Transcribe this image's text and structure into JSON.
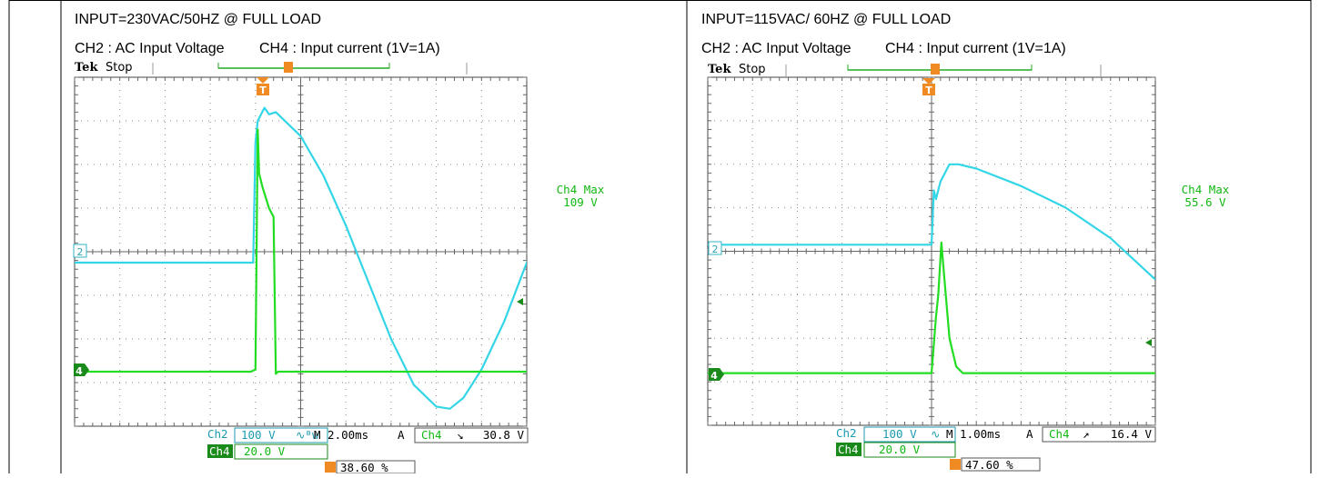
{
  "chart_data": [
    {
      "type": "line",
      "header": "INPUT=230VAC/50HZ @ FULL LOAD",
      "subheader_ch2": "CH2 : AC Input Voltage",
      "subheader_ch4": "CH4 : Input current (1V=1A)",
      "brand": "Tek",
      "acq_state": "Stop",
      "measurement": {
        "label": "Ch4 Max",
        "value": "109 V"
      },
      "ch2_marker": "2",
      "ch4_marker": "4",
      "trigger_marker": "T",
      "readout": {
        "ch2_label": "Ch2",
        "ch2_scale": "100 V",
        "ch2_coupling": "∿ᴮw",
        "timebase": "M 2.00ms",
        "trigger_mode": "A",
        "trigger_source": "Ch4",
        "trigger_slope": "↘",
        "trigger_level": "30.8 V",
        "ch4_label": "Ch4",
        "ch4_scale": "20.0 V",
        "trigger_position": "38.60 %"
      },
      "grid": {
        "divisions_x": 10,
        "divisions_y": 8
      },
      "series": [
        {
          "name": "CH2",
          "color": "#33d6e6",
          "points": [
            [
              0,
              3.75
            ],
            [
              3.95,
              3.75
            ],
            [
              4.0,
              6.5
            ],
            [
              4.05,
              7.0
            ],
            [
              4.2,
              7.3
            ],
            [
              4.3,
              7.15
            ],
            [
              4.45,
              7.2
            ],
            [
              5.0,
              6.65
            ],
            [
              5.5,
              5.75
            ],
            [
              6.0,
              4.6
            ],
            [
              6.5,
              3.3
            ],
            [
              7.0,
              2.0
            ],
            [
              7.5,
              0.95
            ],
            [
              8.0,
              0.45
            ],
            [
              8.3,
              0.4
            ],
            [
              8.6,
              0.65
            ],
            [
              9.0,
              1.3
            ],
            [
              9.5,
              2.4
            ],
            [
              10.0,
              3.75
            ],
            [
              10.5,
              5.05
            ],
            [
              11.0,
              6.1
            ]
          ]
        },
        {
          "name": "CH4",
          "color": "#22dd22",
          "points": [
            [
              0,
              1.25
            ],
            [
              3.9,
              1.25
            ],
            [
              4.0,
              1.3
            ],
            [
              4.05,
              6.8
            ],
            [
              4.08,
              5.8
            ],
            [
              4.15,
              5.5
            ],
            [
              4.3,
              5.0
            ],
            [
              4.4,
              4.8
            ],
            [
              4.45,
              1.2
            ],
            [
              4.5,
              1.25
            ],
            [
              11.0,
              1.25
            ]
          ]
        }
      ]
    },
    {
      "type": "line",
      "header": "INPUT=115VAC/ 60HZ @ FULL LOAD",
      "subheader_ch2": "CH2 : AC Input Voltage",
      "subheader_ch4": "CH4 : Input current (1V=1A)",
      "brand": "Tek",
      "acq_state": "Stop",
      "measurement": {
        "label": "Ch4 Max",
        "value": "55.6 V"
      },
      "ch2_marker": "2",
      "ch4_marker": "4",
      "trigger_marker": "T",
      "readout": {
        "ch2_label": "Ch2",
        "ch2_scale": "100 V",
        "ch2_coupling": "∿",
        "timebase": "M 1.00ms",
        "trigger_mode": "A",
        "trigger_source": "Ch4",
        "trigger_slope": "↗",
        "trigger_level": "16.4 V",
        "ch4_label": "Ch4",
        "ch4_scale": "20.0 V",
        "trigger_position": "47.60 %"
      },
      "grid": {
        "divisions_x": 10,
        "divisions_y": 8
      },
      "series": [
        {
          "name": "CH2",
          "color": "#33d6e6",
          "points": [
            [
              0,
              4.15
            ],
            [
              5.0,
              4.15
            ],
            [
              5.05,
              5.4
            ],
            [
              5.1,
              5.2
            ],
            [
              5.2,
              5.6
            ],
            [
              5.4,
              6.0
            ],
            [
              5.6,
              6.0
            ],
            [
              6.0,
              5.9
            ],
            [
              7.0,
              5.5
            ],
            [
              8.0,
              5.0
            ],
            [
              9.0,
              4.3
            ],
            [
              10.0,
              3.35
            ]
          ]
        },
        {
          "name": "CH4",
          "color": "#22dd22",
          "points": [
            [
              0,
              1.2
            ],
            [
              5.0,
              1.2
            ],
            [
              5.1,
              2.5
            ],
            [
              5.15,
              3.0
            ],
            [
              5.22,
              4.2
            ],
            [
              5.3,
              3.2
            ],
            [
              5.4,
              2.0
            ],
            [
              5.55,
              1.35
            ],
            [
              5.7,
              1.2
            ],
            [
              10.0,
              1.2
            ]
          ]
        }
      ]
    }
  ]
}
